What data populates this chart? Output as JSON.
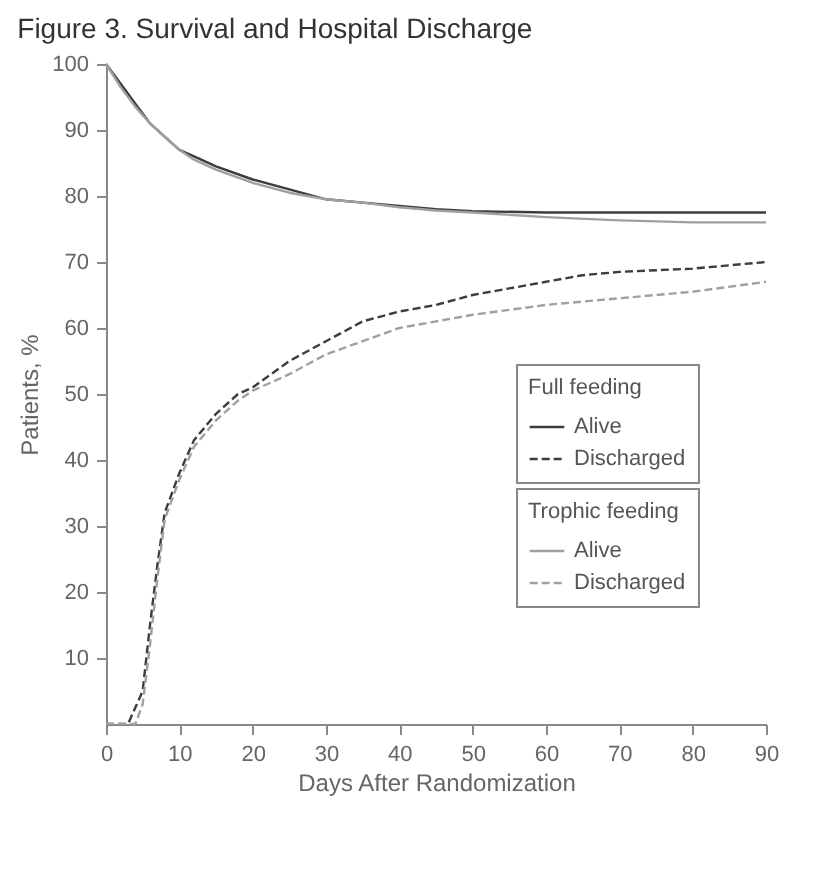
{
  "chart_data": {
    "type": "line",
    "title": "Figure 3. Survival and Hospital Discharge",
    "xlabel": "Days After Randomization",
    "ylabel": "Patients, %",
    "annotations": [
      "Full feeding",
      "Trophic feeding"
    ],
    "xlim": [
      0,
      90
    ],
    "xticks": [
      0,
      10,
      20,
      30,
      40,
      50,
      60,
      70,
      80,
      90
    ],
    "ylim": [
      0,
      100
    ],
    "yticks": [
      10,
      20,
      30,
      40,
      50,
      60,
      70,
      80,
      90,
      100
    ],
    "grid": false,
    "legend": "bottom right",
    "marker": "none",
    "series": [
      {
        "name": "Alive",
        "color": "#3c3c3c",
        "line_style": "solid",
        "x": [
          0,
          2,
          4,
          6,
          8,
          10,
          12,
          15,
          20,
          25,
          30,
          35,
          40,
          45,
          50,
          60,
          70,
          80,
          90
        ],
        "values": [
          100,
          97,
          94,
          91,
          89,
          87,
          86,
          84.5,
          82.5,
          81,
          79.5,
          79,
          78.5,
          78,
          77.7,
          77.5,
          77.5,
          77.5,
          77.5
        ]
      },
      {
        "name": "Discharged",
        "color": "#3c3c3c",
        "line_style": "dashed",
        "x": [
          0,
          3,
          5,
          6,
          7,
          8,
          10,
          12,
          15,
          18,
          20,
          25,
          30,
          35,
          40,
          45,
          50,
          55,
          60,
          65,
          70,
          80,
          90
        ],
        "values": [
          0,
          0,
          5,
          15,
          24,
          32,
          38,
          43,
          47,
          50,
          51,
          55,
          58,
          61,
          62.5,
          63.5,
          65,
          66,
          67,
          68,
          68.5,
          69,
          70
        ]
      },
      {
        "name": "Alive",
        "color": "#a0a0a0",
        "line_style": "solid",
        "x": [
          0,
          2,
          4,
          6,
          8,
          10,
          12,
          15,
          20,
          25,
          30,
          35,
          40,
          45,
          50,
          60,
          70,
          80,
          90
        ],
        "values": [
          100,
          96.5,
          93.5,
          91,
          89,
          87,
          85.5,
          84,
          82,
          80.5,
          79.5,
          79,
          78.3,
          77.8,
          77.5,
          76.8,
          76.3,
          76,
          76
        ]
      },
      {
        "name": "Discharged",
        "color": "#a0a0a0",
        "line_style": "dashed",
        "x": [
          0,
          4,
          5,
          6,
          7,
          8,
          10,
          12,
          15,
          18,
          20,
          25,
          30,
          35,
          40,
          45,
          50,
          60,
          70,
          80,
          90
        ],
        "values": [
          0,
          0,
          3,
          12,
          22,
          31,
          37,
          42,
          46,
          49,
          50.5,
          53,
          56,
          58,
          60,
          61,
          62,
          63.5,
          64.5,
          65.5,
          67
        ]
      }
    ]
  }
}
